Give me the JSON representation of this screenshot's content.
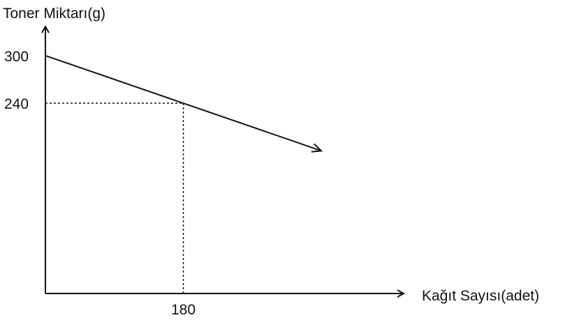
{
  "chart_data": {
    "type": "line",
    "xlabel": "Kağıt Sayısı(adet)",
    "ylabel": "Toner Miktarı(g)",
    "xlim": [
      0,
      360
    ],
    "ylim": [
      0,
      357
    ],
    "x_ticks": [
      180
    ],
    "y_ticks": [
      240,
      300
    ],
    "series": [
      {
        "x": [
          0,
          180,
          360
        ],
        "y": [
          300,
          240,
          180
        ]
      }
    ],
    "highlight_point": {
      "x": 180,
      "y": 240,
      "guides": "dotted"
    },
    "grid": false,
    "legend": "none"
  }
}
